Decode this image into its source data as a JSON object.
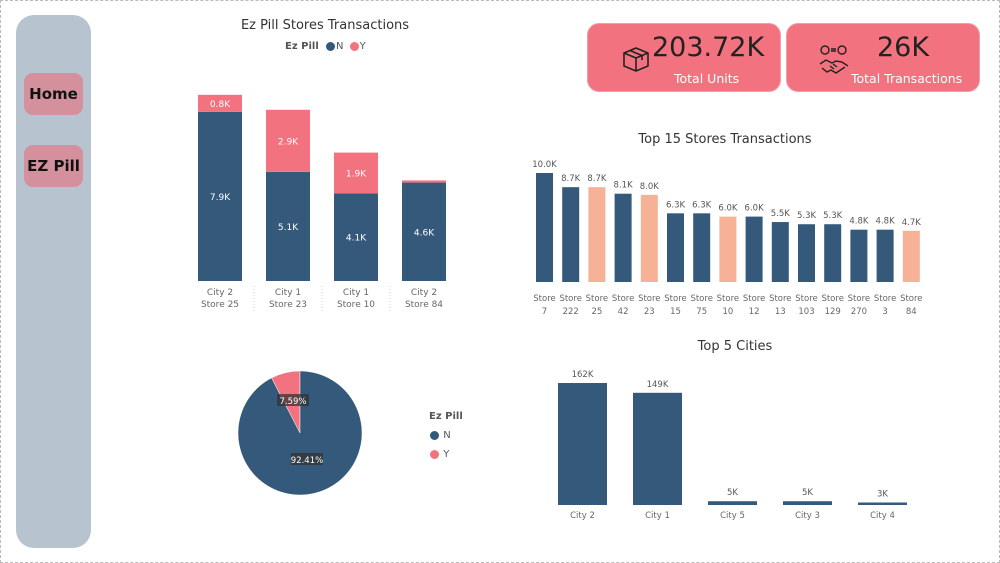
{
  "nav": {
    "home": "Home",
    "ezpill": "EZ Pill"
  },
  "kpis": [
    {
      "value": "203.72K",
      "label": "Total Units",
      "icon": "box-icon"
    },
    {
      "value": "26K",
      "label": "Total Transactions",
      "icon": "handshake-money-icon"
    }
  ],
  "colors": {
    "N": "#34597a",
    "Y": "#f2737f",
    "highlight": "#f7b196",
    "sidebar": "#b7c4cf",
    "nav_button": "#d4909c"
  },
  "chart_data": [
    {
      "type": "bar",
      "stacked": true,
      "title": "Ez Pill Stores Transactions",
      "legend_title": "Ez Pill",
      "legend_position": "top",
      "categories": [
        [
          "City 2",
          "Store 25"
        ],
        [
          "City 1",
          "Store 23"
        ],
        [
          "City 1",
          "Store 10"
        ],
        [
          "City 2",
          "Store 84"
        ]
      ],
      "series": [
        {
          "name": "N",
          "values": [
            7.9,
            5.1,
            4.1,
            4.6
          ],
          "labels": [
            "7.9K",
            "5.1K",
            "4.1K",
            "4.6K"
          ]
        },
        {
          "name": "Y",
          "values": [
            0.8,
            2.9,
            1.9,
            0.1
          ],
          "labels": [
            "0.8K",
            "2.9K",
            "1.9K",
            ""
          ]
        }
      ],
      "unit": "K"
    },
    {
      "type": "bar",
      "title": "Top 15 Stores Transactions",
      "categories": [
        [
          "Store",
          "7"
        ],
        [
          "Store",
          "222"
        ],
        [
          "Store",
          "25"
        ],
        [
          "Store",
          "42"
        ],
        [
          "Store",
          "23"
        ],
        [
          "Store",
          "15"
        ],
        [
          "Store",
          "75"
        ],
        [
          "Store",
          "10"
        ],
        [
          "Store",
          "12"
        ],
        [
          "Store",
          "13"
        ],
        [
          "Store",
          "103"
        ],
        [
          "Store",
          "129"
        ],
        [
          "Store",
          "270"
        ],
        [
          "Store",
          "3"
        ],
        [
          "Store",
          "84"
        ]
      ],
      "values": [
        10.0,
        8.7,
        8.7,
        8.1,
        8.0,
        6.3,
        6.3,
        6.0,
        6.0,
        5.5,
        5.3,
        5.3,
        4.8,
        4.8,
        4.7
      ],
      "labels": [
        "10.0K",
        "8.7K",
        "8.7K",
        "8.1K",
        "8.0K",
        "6.3K",
        "6.3K",
        "6.0K",
        "6.0K",
        "5.5K",
        "5.3K",
        "5.3K",
        "4.8K",
        "4.8K",
        "4.7K"
      ],
      "highlighted": [
        false,
        false,
        true,
        false,
        true,
        false,
        false,
        true,
        false,
        false,
        false,
        false,
        false,
        false,
        true
      ]
    },
    {
      "type": "pie",
      "legend_title": "Ez Pill",
      "legend_position": "right",
      "slices": [
        {
          "name": "N",
          "value": 92.41,
          "label": "92.41%"
        },
        {
          "name": "Y",
          "value": 7.59,
          "label": "7.59%"
        }
      ]
    },
    {
      "type": "bar",
      "title": "Top 5 Cities",
      "categories": [
        "City 2",
        "City 1",
        "City 5",
        "City 3",
        "City 4"
      ],
      "values": [
        162,
        149,
        5,
        5,
        3
      ],
      "labels": [
        "162K",
        "149K",
        "5K",
        "5K",
        "3K"
      ]
    }
  ]
}
